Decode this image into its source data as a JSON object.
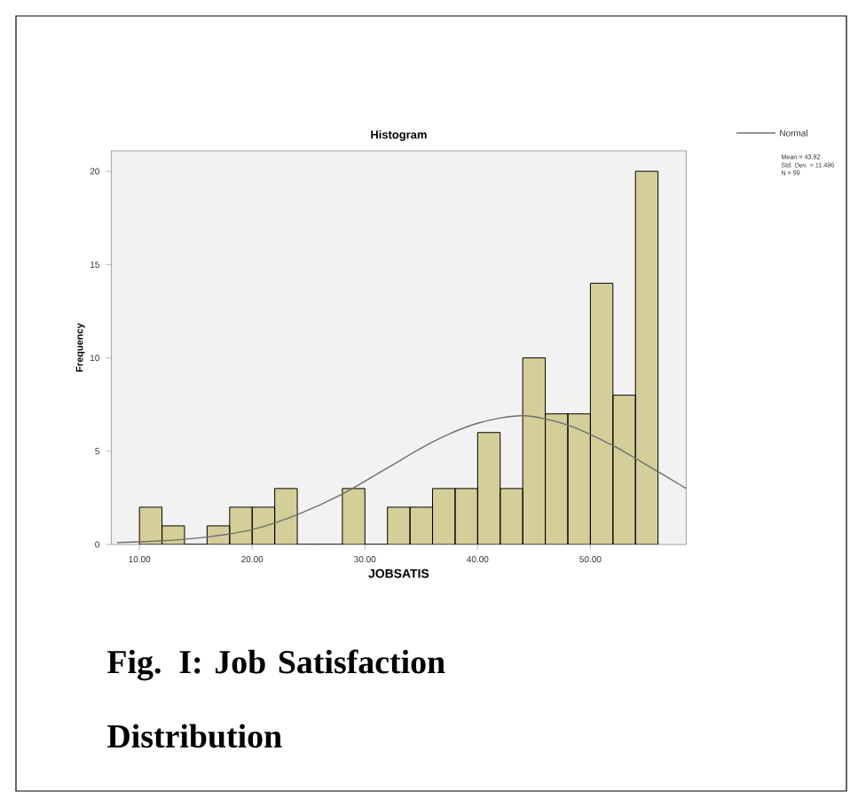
{
  "chart_data": {
    "type": "histogram",
    "title": "Histogram",
    "xlabel": "JOBSATIS",
    "ylabel": "Frequency",
    "xlim": [
      7.5,
      58.5
    ],
    "ylim": [
      0,
      21.1
    ],
    "xticks": [
      {
        "value": 10,
        "label": "10.00"
      },
      {
        "value": 20,
        "label": "20.00"
      },
      {
        "value": 30,
        "label": "30.00"
      },
      {
        "value": 40,
        "label": "40.00"
      },
      {
        "value": 50,
        "label": "50.00"
      }
    ],
    "yticks": [
      0,
      5,
      10,
      15,
      20
    ],
    "legend": "top right",
    "grid": false,
    "series": [
      {
        "color": "#d4cf98",
        "bins": [
          10,
          12,
          14,
          16,
          18,
          20,
          22,
          24,
          26,
          28,
          30,
          32,
          34,
          36,
          38,
          40,
          42,
          44,
          46,
          48,
          50,
          52,
          54,
          56
        ],
        "values": [
          2,
          1,
          0,
          1,
          2,
          2,
          3,
          0,
          0,
          3,
          0,
          2,
          2,
          3,
          3,
          6,
          3,
          10,
          7,
          7,
          14,
          8,
          20
        ]
      },
      {
        "type": "line",
        "name": "Normal",
        "color": "#6e6e6e",
        "x": [
          8,
          12,
          16,
          20,
          24,
          28,
          32,
          36,
          40,
          44,
          48,
          52,
          56,
          58.5
        ],
        "values": [
          0.1,
          0.2,
          0.4,
          0.8,
          1.6,
          2.7,
          4.1,
          5.5,
          6.5,
          6.9,
          6.4,
          5.3,
          3.9,
          3.0
        ]
      }
    ],
    "annotations": [
      "Mean = 43.82",
      "Std. Dev. = 11.496",
      "N = 99",
      "Fig. I: Job Satisfaction Distribution"
    ]
  }
}
